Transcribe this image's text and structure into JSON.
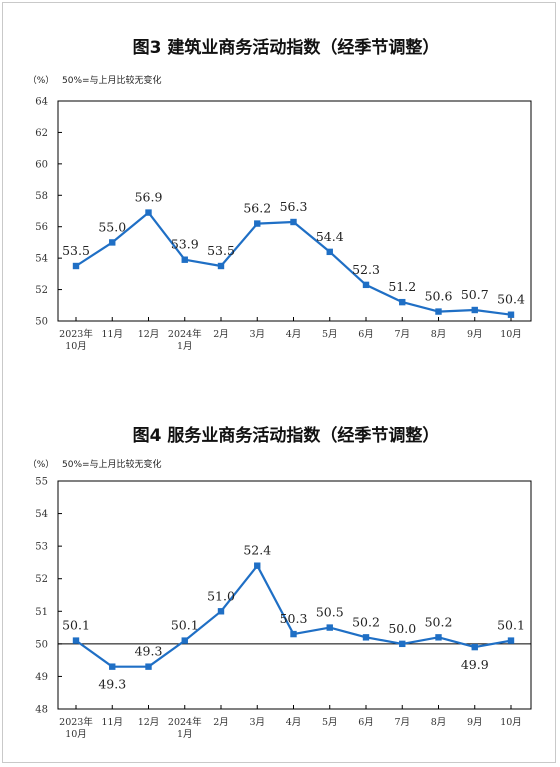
{
  "colors": {
    "series": "#1f6fc5",
    "axis": "#000000",
    "text": "#222222"
  },
  "chart_data": [
    {
      "type": "line",
      "title": "图3  建筑业商务活动指数（经季节调整）",
      "ylabel": "（%）",
      "note": "50%=与上月比较无变化",
      "ylim": [
        50,
        64
      ],
      "yticks": [
        50,
        52,
        54,
        56,
        58,
        60,
        62,
        64
      ],
      "grid": false,
      "categories": [
        [
          "2023年",
          "10月"
        ],
        [
          "11月"
        ],
        [
          "12月"
        ],
        [
          "2024年",
          "1月"
        ],
        [
          "2月"
        ],
        [
          "3月"
        ],
        [
          "4月"
        ],
        [
          "5月"
        ],
        [
          "6月"
        ],
        [
          "7月"
        ],
        [
          "8月"
        ],
        [
          "9月"
        ],
        [
          "10月"
        ]
      ],
      "values": [
        53.5,
        55.0,
        56.9,
        53.9,
        53.5,
        56.2,
        56.3,
        54.4,
        52.3,
        51.2,
        50.6,
        50.7,
        50.4
      ],
      "labels": [
        "53.5",
        "55.0",
        "56.9",
        "53.9",
        "53.5",
        "56.2",
        "56.3",
        "54.4",
        "52.3",
        "51.2",
        "50.6",
        "50.7",
        "50.4"
      ]
    },
    {
      "type": "line",
      "title": "图4  服务业商务活动指数（经季节调整）",
      "ylabel": "（%）",
      "note": "50%=与上月比较无变化",
      "ylim": [
        48,
        55
      ],
      "yticks": [
        48,
        49,
        50,
        51,
        52,
        53,
        54,
        55
      ],
      "baseline": 50,
      "grid": false,
      "categories": [
        [
          "2023年",
          "10月"
        ],
        [
          "11月"
        ],
        [
          "12月"
        ],
        [
          "2024年",
          "1月"
        ],
        [
          "2月"
        ],
        [
          "3月"
        ],
        [
          "4月"
        ],
        [
          "5月"
        ],
        [
          "6月"
        ],
        [
          "7月"
        ],
        [
          "8月"
        ],
        [
          "9月"
        ],
        [
          "10月"
        ]
      ],
      "values": [
        50.1,
        49.3,
        49.3,
        50.1,
        51.0,
        52.4,
        50.3,
        50.5,
        50.2,
        50.0,
        50.2,
        49.9,
        50.1
      ],
      "labels": [
        "50.1",
        "49.3",
        "49.3",
        "50.1",
        "51.0",
        "52.4",
        "50.3",
        "50.5",
        "50.2",
        "50.0",
        "50.2",
        "49.9",
        "50.1"
      ]
    }
  ]
}
